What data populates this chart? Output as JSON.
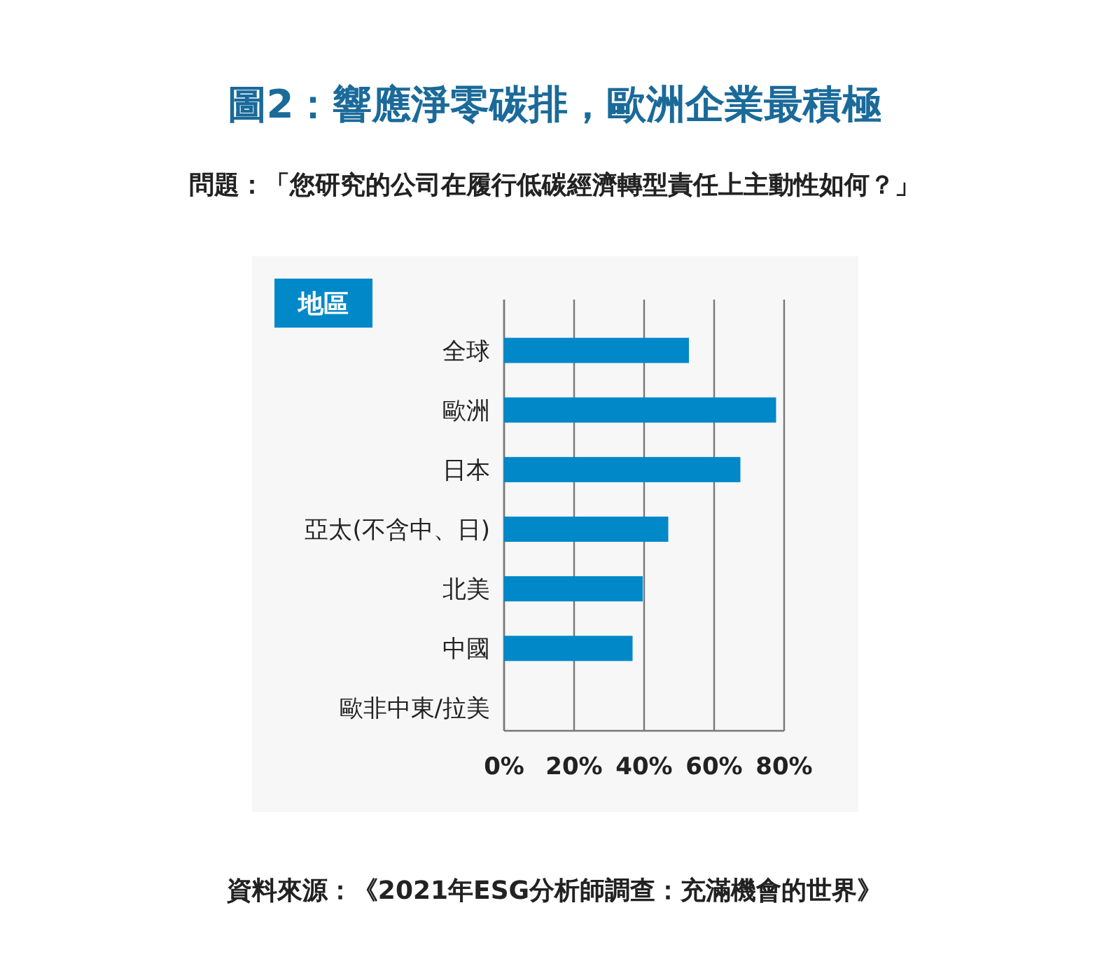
{
  "chart_data": {
    "type": "bar",
    "orientation": "horizontal",
    "title": "圖2：響應淨零碳排，歐洲企業最積極",
    "subtitle": "問題：「您研究的公司在履行低碳經濟轉型責任上主動性如何？」",
    "ylabel": "地區",
    "categories": [
      "全球",
      "歐洲",
      "日本",
      "亞太(不含中、日)",
      "北美",
      "中國",
      "歐非中東/拉美"
    ],
    "series": [
      {
        "color": "#0088c8",
        "values": [
          52.8,
          77.7,
          67.5,
          46.9,
          39.6,
          36.7,
          null
        ]
      }
    ],
    "xlim": [
      0,
      80
    ],
    "xticks": [
      {
        "value": 0,
        "label": "0%"
      },
      {
        "value": 20,
        "label": "20%"
      },
      {
        "value": 40,
        "label": "40%"
      },
      {
        "value": 60,
        "label": "60%"
      },
      {
        "value": 80,
        "label": "80%"
      }
    ],
    "grid": "x",
    "annotations": [
      "資料來源：《2021年ESG分析師調查：充滿機會的世界》"
    ]
  }
}
